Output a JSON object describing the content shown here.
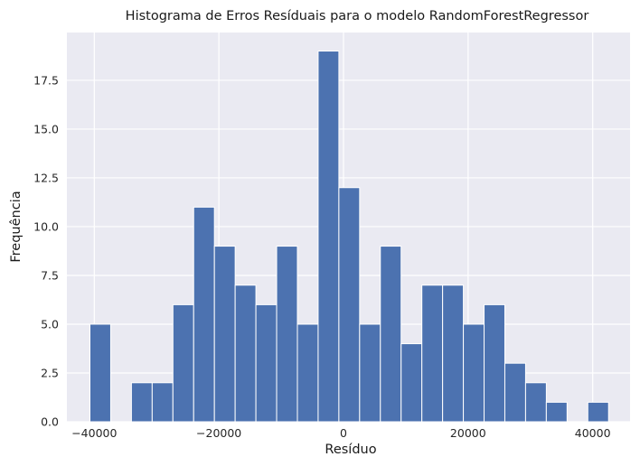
{
  "chart_data": {
    "type": "histogram",
    "title": "Histograma de Erros Resíduais para o modelo RandomForestRegressor",
    "xlabel": "Resíduo",
    "ylabel": "Frequência",
    "bin_start": -40700,
    "bin_width": 3330,
    "counts": [
      5,
      0,
      2,
      2,
      6,
      11,
      9,
      7,
      6,
      9,
      5,
      19,
      12,
      5,
      9,
      4,
      7,
      7,
      5,
      6,
      3,
      2,
      1,
      0,
      1
    ],
    "xlim": [
      -44400,
      46000
    ],
    "ylim": [
      0,
      19.95
    ],
    "xticks": [
      -40000,
      -20000,
      0,
      20000,
      40000
    ],
    "xtick_labels": [
      "−40000",
      "−20000",
      "0",
      "20000",
      "40000"
    ],
    "yticks": [
      0,
      2.5,
      5,
      7.5,
      10,
      12.5,
      15,
      17.5
    ],
    "ytick_labels": [
      "0.0",
      "2.5",
      "5.0",
      "7.5",
      "10.0",
      "12.5",
      "15.0",
      "17.5"
    ],
    "grid": true,
    "colors": {
      "bar": "#4c72b0",
      "plot_background": "#eaeaf2",
      "grid": "#ffffff"
    }
  }
}
